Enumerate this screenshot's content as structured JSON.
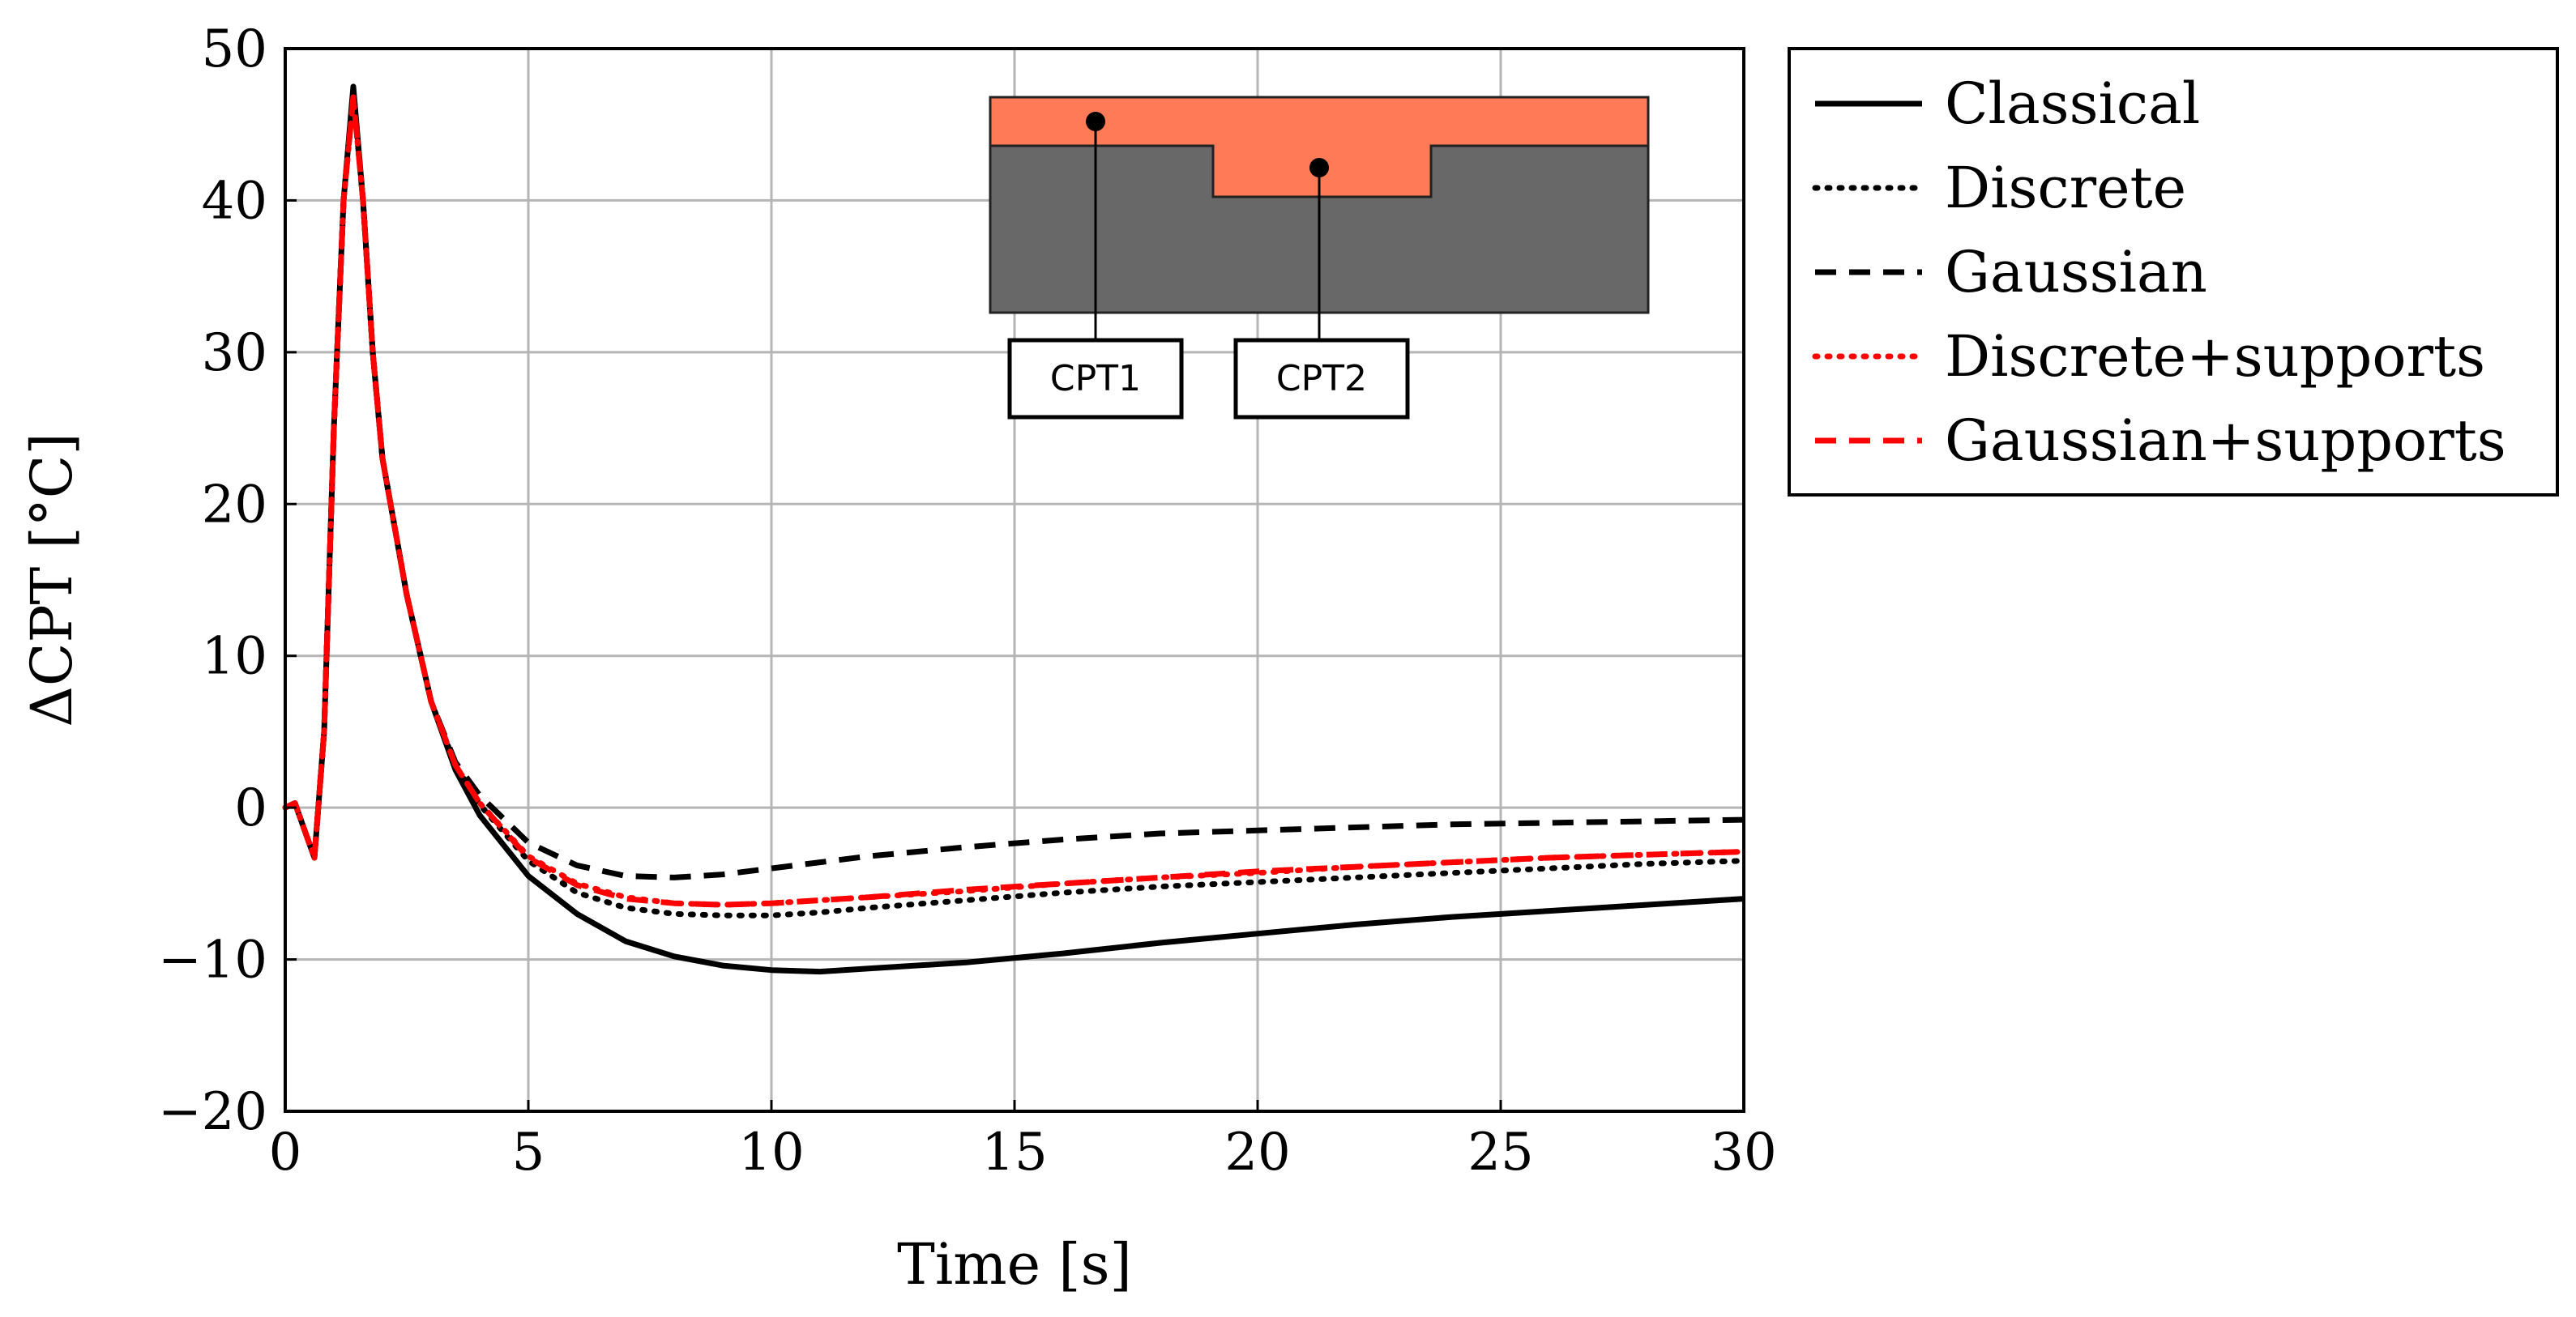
{
  "chart_data": {
    "type": "line",
    "title": "",
    "xlabel": "Time [s]",
    "ylabel": "ΔCPT [°C]",
    "xlim": [
      0,
      30
    ],
    "ylim": [
      -20,
      50
    ],
    "xticks": [
      0,
      5,
      10,
      15,
      20,
      25,
      30
    ],
    "yticks": [
      -20,
      -10,
      0,
      10,
      20,
      30,
      40,
      50
    ],
    "ytick_labels": [
      "−20",
      "−10",
      "0",
      "10",
      "20",
      "30",
      "40",
      "50"
    ],
    "grid": true,
    "legend_position": "outside-right-top",
    "series": [
      {
        "name": "Classical",
        "color": "#000000",
        "style": "solid",
        "x": [
          0,
          0.2,
          0.4,
          0.6,
          0.8,
          1.0,
          1.2,
          1.4,
          1.6,
          1.8,
          2.0,
          2.5,
          3.0,
          3.5,
          4.0,
          5.0,
          6.0,
          7.0,
          8.0,
          9.0,
          10.0,
          11.0,
          12.0,
          14.0,
          16.0,
          18.0,
          20.0,
          22.0,
          24.0,
          26.0,
          28.0,
          30.0
        ],
        "y": [
          0,
          0.3,
          -1.5,
          -3.3,
          5,
          25,
          40,
          47.5,
          40,
          30,
          23,
          14,
          7,
          2.5,
          -0.5,
          -4.5,
          -7,
          -8.8,
          -9.8,
          -10.4,
          -10.7,
          -10.8,
          -10.6,
          -10.2,
          -9.6,
          -8.9,
          -8.3,
          -7.7,
          -7.2,
          -6.8,
          -6.4,
          -6
        ]
      },
      {
        "name": "Discrete",
        "color": "#000000",
        "style": "dotted",
        "x": [
          0,
          0.2,
          0.4,
          0.6,
          0.8,
          1.0,
          1.2,
          1.4,
          1.6,
          1.8,
          2.0,
          2.5,
          3.0,
          3.5,
          4.0,
          5.0,
          6.0,
          7.0,
          8.0,
          9.0,
          10.0,
          11.0,
          12.0,
          14.0,
          16.0,
          18.0,
          20.0,
          22.0,
          24.0,
          26.0,
          28.0,
          30.0
        ],
        "y": [
          0,
          0.3,
          -1.5,
          -3.3,
          5,
          25,
          40,
          47,
          40,
          30,
          23,
          14,
          7,
          2.8,
          0.2,
          -3.5,
          -5.6,
          -6.6,
          -7,
          -7.1,
          -7.1,
          -6.9,
          -6.6,
          -6.1,
          -5.6,
          -5.2,
          -4.9,
          -4.6,
          -4.3,
          -4,
          -3.7,
          -3.5
        ]
      },
      {
        "name": "Gaussian",
        "color": "#000000",
        "style": "dashed",
        "x": [
          0,
          0.2,
          0.4,
          0.6,
          0.8,
          1.0,
          1.2,
          1.4,
          1.6,
          1.8,
          2.0,
          2.5,
          3.0,
          3.5,
          4.0,
          5.0,
          6.0,
          7.0,
          8.0,
          9.0,
          10.0,
          11.0,
          12.0,
          14.0,
          16.0,
          18.0,
          20.0,
          22.0,
          24.0,
          26.0,
          28.0,
          30.0
        ],
        "y": [
          0,
          0.3,
          -1.5,
          -3.3,
          5,
          25,
          40,
          47,
          40,
          30,
          23,
          14,
          7,
          3,
          0.8,
          -2.3,
          -3.8,
          -4.5,
          -4.6,
          -4.4,
          -4,
          -3.6,
          -3.2,
          -2.6,
          -2.1,
          -1.7,
          -1.5,
          -1.3,
          -1.1,
          -1,
          -0.9,
          -0.8
        ]
      },
      {
        "name": "Discrete+supports",
        "color": "#ff0000",
        "style": "dotted",
        "x": [
          0,
          0.2,
          0.4,
          0.6,
          0.8,
          1.0,
          1.2,
          1.4,
          1.6,
          1.8,
          2.0,
          2.5,
          3.0,
          3.5,
          4.0,
          5.0,
          6.0,
          7.0,
          8.0,
          9.0,
          10.0,
          11.0,
          12.0,
          14.0,
          16.0,
          18.0,
          20.0,
          22.0,
          24.0,
          26.0,
          28.0,
          30.0
        ],
        "y": [
          0,
          0.3,
          -1.5,
          -3.3,
          5,
          25,
          40,
          46.8,
          40,
          30,
          23,
          14,
          7,
          2.8,
          0.3,
          -3.2,
          -5,
          -5.9,
          -6.3,
          -6.4,
          -6.3,
          -6.1,
          -5.9,
          -5.5,
          -5,
          -4.6,
          -4.3,
          -3.9,
          -3.6,
          -3.3,
          -3.1,
          -2.9
        ]
      },
      {
        "name": "Gaussian+supports",
        "color": "#ff0000",
        "style": "dashed",
        "x": [
          0,
          0.2,
          0.4,
          0.6,
          0.8,
          1.0,
          1.2,
          1.4,
          1.6,
          1.8,
          2.0,
          2.5,
          3.0,
          3.5,
          4.0,
          5.0,
          6.0,
          7.0,
          8.0,
          9.0,
          10.0,
          11.0,
          12.0,
          14.0,
          16.0,
          18.0,
          20.0,
          22.0,
          24.0,
          26.0,
          28.0,
          30.0
        ],
        "y": [
          0,
          0.3,
          -1.5,
          -3.3,
          5,
          25,
          40,
          46.8,
          40,
          30,
          23,
          14,
          7,
          2.8,
          0.3,
          -3.3,
          -5.1,
          -6,
          -6.3,
          -6.4,
          -6.3,
          -6.1,
          -5.9,
          -5.4,
          -5,
          -4.6,
          -4.2,
          -3.9,
          -3.6,
          -3.3,
          -3.1,
          -2.9
        ]
      }
    ]
  },
  "inset": {
    "labels": [
      "CPT1",
      "CPT2"
    ],
    "colors": {
      "top_layer": "#ff7a57",
      "substrate": "#686868"
    }
  }
}
